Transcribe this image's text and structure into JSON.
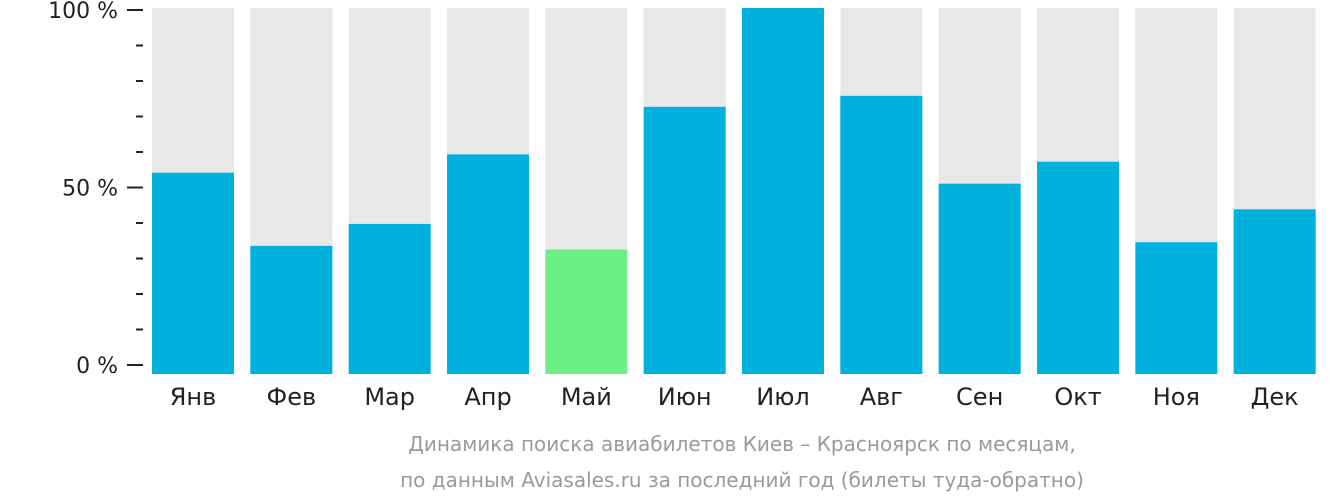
{
  "chart_data": {
    "type": "bar",
    "categories": [
      "Янв",
      "Фев",
      "Мар",
      "Апр",
      "Май",
      "Июн",
      "Июл",
      "Авг",
      "Сен",
      "Окт",
      "Ноя",
      "Дек"
    ],
    "values": [
      55,
      35,
      41,
      60,
      34,
      73,
      100,
      76,
      52,
      58,
      36,
      45
    ],
    "highlight_index": 4,
    "ylim": [
      0,
      100
    ],
    "y_ticks": [
      {
        "value": 0,
        "label": "0 %"
      },
      {
        "value": 50,
        "label": "50 %"
      },
      {
        "value": 100,
        "label": "100 %"
      }
    ],
    "y_minor_step": 10,
    "background_bar_value": 100,
    "grid": false,
    "legend": "none",
    "colors": {
      "bar": "#00b0dd",
      "highlight": "#6cf083",
      "background_bar": "#e8e8e8",
      "axis": "#222222",
      "caption": "#9a9a9a"
    }
  },
  "caption": {
    "line1": "Динамика поиска авиабилетов Киев – Красноярск по месяцам,",
    "line2": "по данным Aviasales.ru за последний год (билеты туда-обратно)"
  }
}
